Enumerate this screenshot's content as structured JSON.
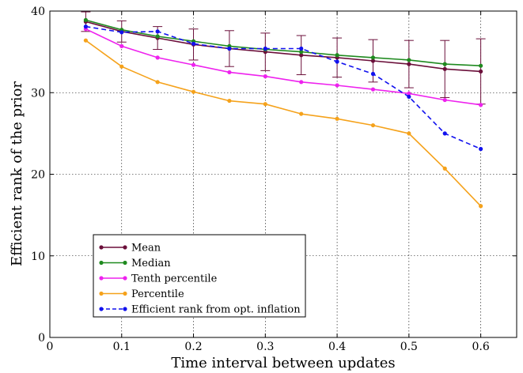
{
  "chart_data": {
    "type": "line",
    "xlabel": "Time interval between updates",
    "ylabel": "Efficient rank of the prior",
    "xlim": [
      0,
      0.65
    ],
    "ylim": [
      0,
      40
    ],
    "xticks": [
      0,
      0.1,
      0.2,
      0.3,
      0.4,
      0.5,
      0.6
    ],
    "xtick_labels": [
      "0",
      "0.1",
      "0.2",
      "0.3",
      "0.4",
      "0.5",
      "0.6"
    ],
    "yticks": [
      0,
      10,
      20,
      30,
      40
    ],
    "ytick_labels": [
      "0",
      "10",
      "20",
      "30",
      "40"
    ],
    "grid": true,
    "legend_position": "bottom-left",
    "x": [
      0.05,
      0.1,
      0.15,
      0.2,
      0.25,
      0.3,
      0.35,
      0.4,
      0.45,
      0.5,
      0.55,
      0.6
    ],
    "series": [
      {
        "name": "Mean",
        "color": "#6b0f3a",
        "style": "solid",
        "values": [
          38.7,
          37.5,
          36.7,
          35.9,
          35.4,
          35.0,
          34.6,
          34.3,
          33.9,
          33.5,
          32.9,
          32.6
        ],
        "error": [
          1.2,
          1.3,
          1.4,
          1.9,
          2.2,
          2.3,
          2.4,
          2.4,
          2.6,
          2.9,
          3.5,
          4.0
        ]
      },
      {
        "name": "Median",
        "color": "#1f8a1f",
        "style": "solid",
        "values": [
          38.9,
          37.7,
          36.9,
          36.3,
          35.7,
          35.3,
          35.0,
          34.6,
          34.3,
          34.0,
          33.5,
          33.3
        ]
      },
      {
        "name": "Tenth percentile",
        "color": "#ee22ee",
        "style": "solid",
        "values": [
          37.8,
          35.7,
          34.3,
          33.4,
          32.5,
          32.0,
          31.3,
          30.9,
          30.4,
          29.9,
          29.1,
          28.5
        ]
      },
      {
        "name": "Percentile",
        "color": "#f5a21b",
        "style": "solid",
        "values": [
          36.4,
          33.2,
          31.3,
          30.1,
          29.0,
          28.6,
          27.4,
          26.8,
          26.0,
          25.0,
          20.7,
          16.1
        ]
      },
      {
        "name": "Efficient rank from opt. inflation",
        "color": "#1111ee",
        "style": "dashed",
        "values": [
          38.1,
          37.4,
          37.5,
          36.0,
          35.4,
          35.4,
          35.4,
          33.8,
          32.3,
          29.5,
          25.0,
          23.1
        ]
      }
    ]
  }
}
